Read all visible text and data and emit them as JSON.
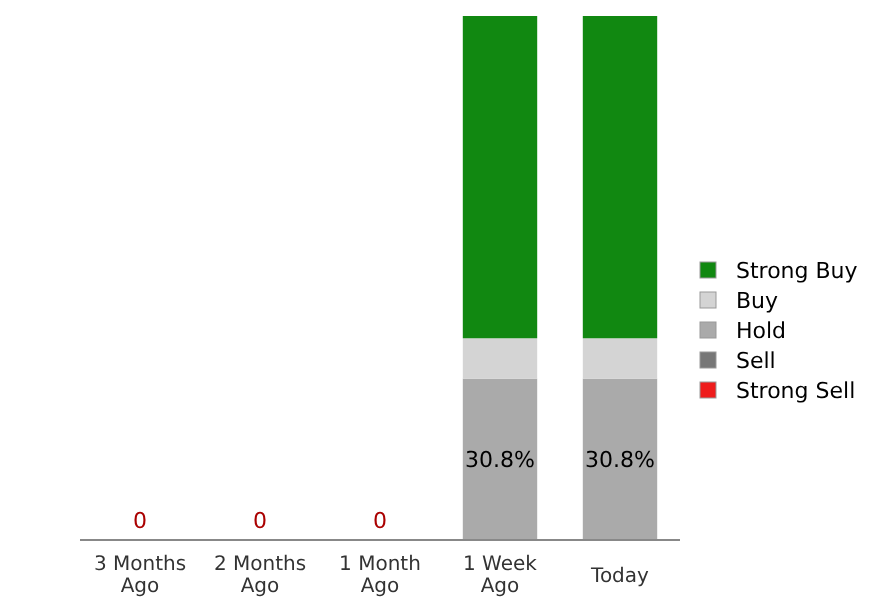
{
  "chart_data": {
    "type": "bar",
    "stacked": true,
    "categories": [
      "3 Months Ago",
      "2 Months Ago",
      "1 Month Ago",
      "1 Week Ago",
      "Today"
    ],
    "series": [
      {
        "name": "Strong Sell",
        "color": "#ee1c1c",
        "values": [
          0,
          0,
          0,
          0,
          0
        ]
      },
      {
        "name": "Sell",
        "color": "#777777",
        "values": [
          0,
          0,
          0,
          0,
          0
        ]
      },
      {
        "name": "Hold",
        "color": "#aaaaaa",
        "values": [
          0,
          0,
          0,
          30.8,
          30.8
        ],
        "value_labels": [
          null,
          null,
          null,
          "30.8%",
          "30.8%"
        ]
      },
      {
        "name": "Buy",
        "color": "#d4d4d4",
        "values": [
          0,
          0,
          0,
          7.7,
          7.7
        ]
      },
      {
        "name": "Strong Buy",
        "color": "#118811",
        "values": [
          0,
          0,
          0,
          61.5,
          61.5
        ]
      }
    ],
    "totals": [
      "0",
      "0",
      "0",
      null,
      null
    ],
    "legend": "right"
  }
}
